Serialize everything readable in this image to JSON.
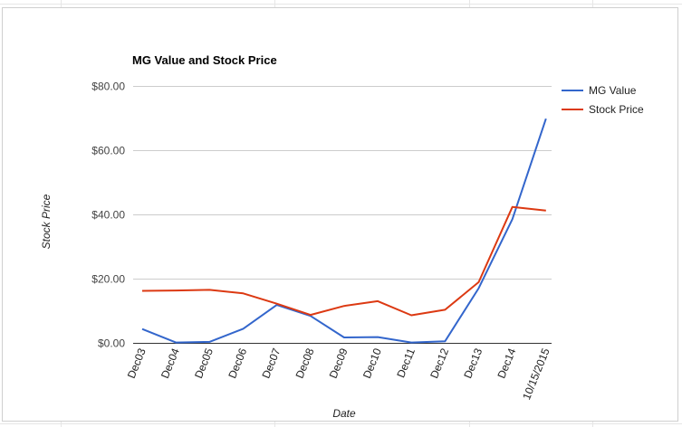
{
  "chart_data": {
    "type": "line",
    "title": "MG Value and Stock Price",
    "xlabel": "Date",
    "ylabel": "Stock Price",
    "categories": [
      "Dec03",
      "Dec04",
      "Dec05",
      "Dec06",
      "Dec07",
      "Dec08",
      "Dec09",
      "Dec10",
      "Dec11",
      "Dec12",
      "Dec13",
      "Dec14",
      "10/15/2015"
    ],
    "y_ticks": [
      "$0.00",
      "$20.00",
      "$40.00",
      "$60.00",
      "$80.00"
    ],
    "ylim": [
      0,
      80
    ],
    "grid": true,
    "legend_position": "right",
    "series": [
      {
        "name": "MG Value",
        "color": "#3366cc",
        "values": [
          4.3,
          0.1,
          0.3,
          4.4,
          11.8,
          8.4,
          1.7,
          1.8,
          0.1,
          0.5,
          17.0,
          38.5,
          69.8
        ]
      },
      {
        "name": "Stock Price",
        "color": "#dc3912",
        "values": [
          16.2,
          16.3,
          16.5,
          15.4,
          12.2,
          8.7,
          11.5,
          13.0,
          8.6,
          10.3,
          18.9,
          42.3,
          41.2
        ]
      }
    ]
  }
}
